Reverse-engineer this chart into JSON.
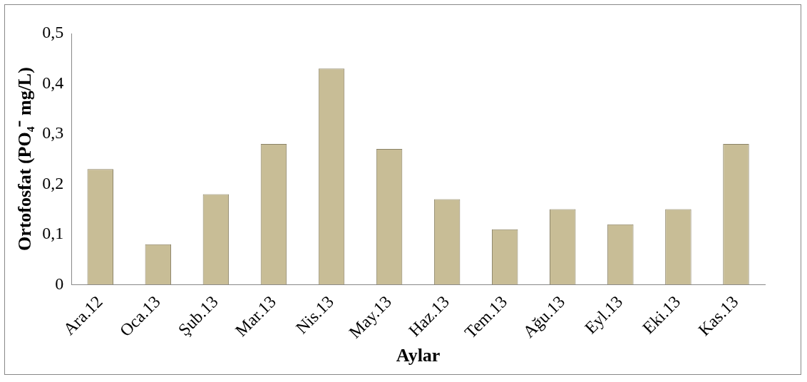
{
  "chart_data": {
    "type": "bar",
    "xlabel": "Aylar",
    "ylabel": "Ortofosfat (PO₄⁻ mg/L)",
    "categories": [
      "Ara.12",
      "Oca.13",
      "Şub.13",
      "Mar.13",
      "Nis.13",
      "May.13",
      "Haz.13",
      "Tem.13",
      "Ağu.13",
      "Eyl.13",
      "Eki.13",
      "Kas.13"
    ],
    "values": [
      0.23,
      0.08,
      0.18,
      0.28,
      0.43,
      0.27,
      0.17,
      0.11,
      0.15,
      0.12,
      0.15,
      0.28
    ],
    "color": "#c8bd96",
    "ylim": [
      0,
      0.5
    ],
    "yticks": [
      {
        "value": 0,
        "label": "0"
      },
      {
        "value": 0.1,
        "label": "0,1"
      },
      {
        "value": 0.2,
        "label": "0,2"
      },
      {
        "value": 0.3,
        "label": "0,3"
      },
      {
        "value": 0.4,
        "label": "0,4"
      },
      {
        "value": 0.5,
        "label": "0,5"
      }
    ],
    "grid": false,
    "legend": false
  }
}
